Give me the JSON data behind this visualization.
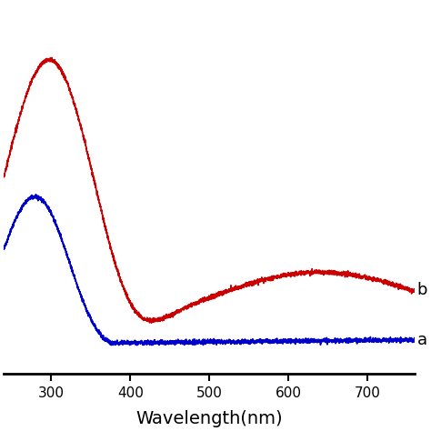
{
  "xlabel": "Wavelength(nm)",
  "xlabel_fontsize": 14,
  "xlim": [
    240,
    760
  ],
  "ylim": [
    -0.05,
    1.3
  ],
  "xticks": [
    300,
    400,
    500,
    600,
    700
  ],
  "background_color": "#ffffff",
  "label_a": "a",
  "label_b": "b",
  "label_fontsize": 13,
  "line_color_a": "#0000cc",
  "line_color_b": "#cc0000",
  "line_width": 1.2,
  "noise_scale": 0.004
}
